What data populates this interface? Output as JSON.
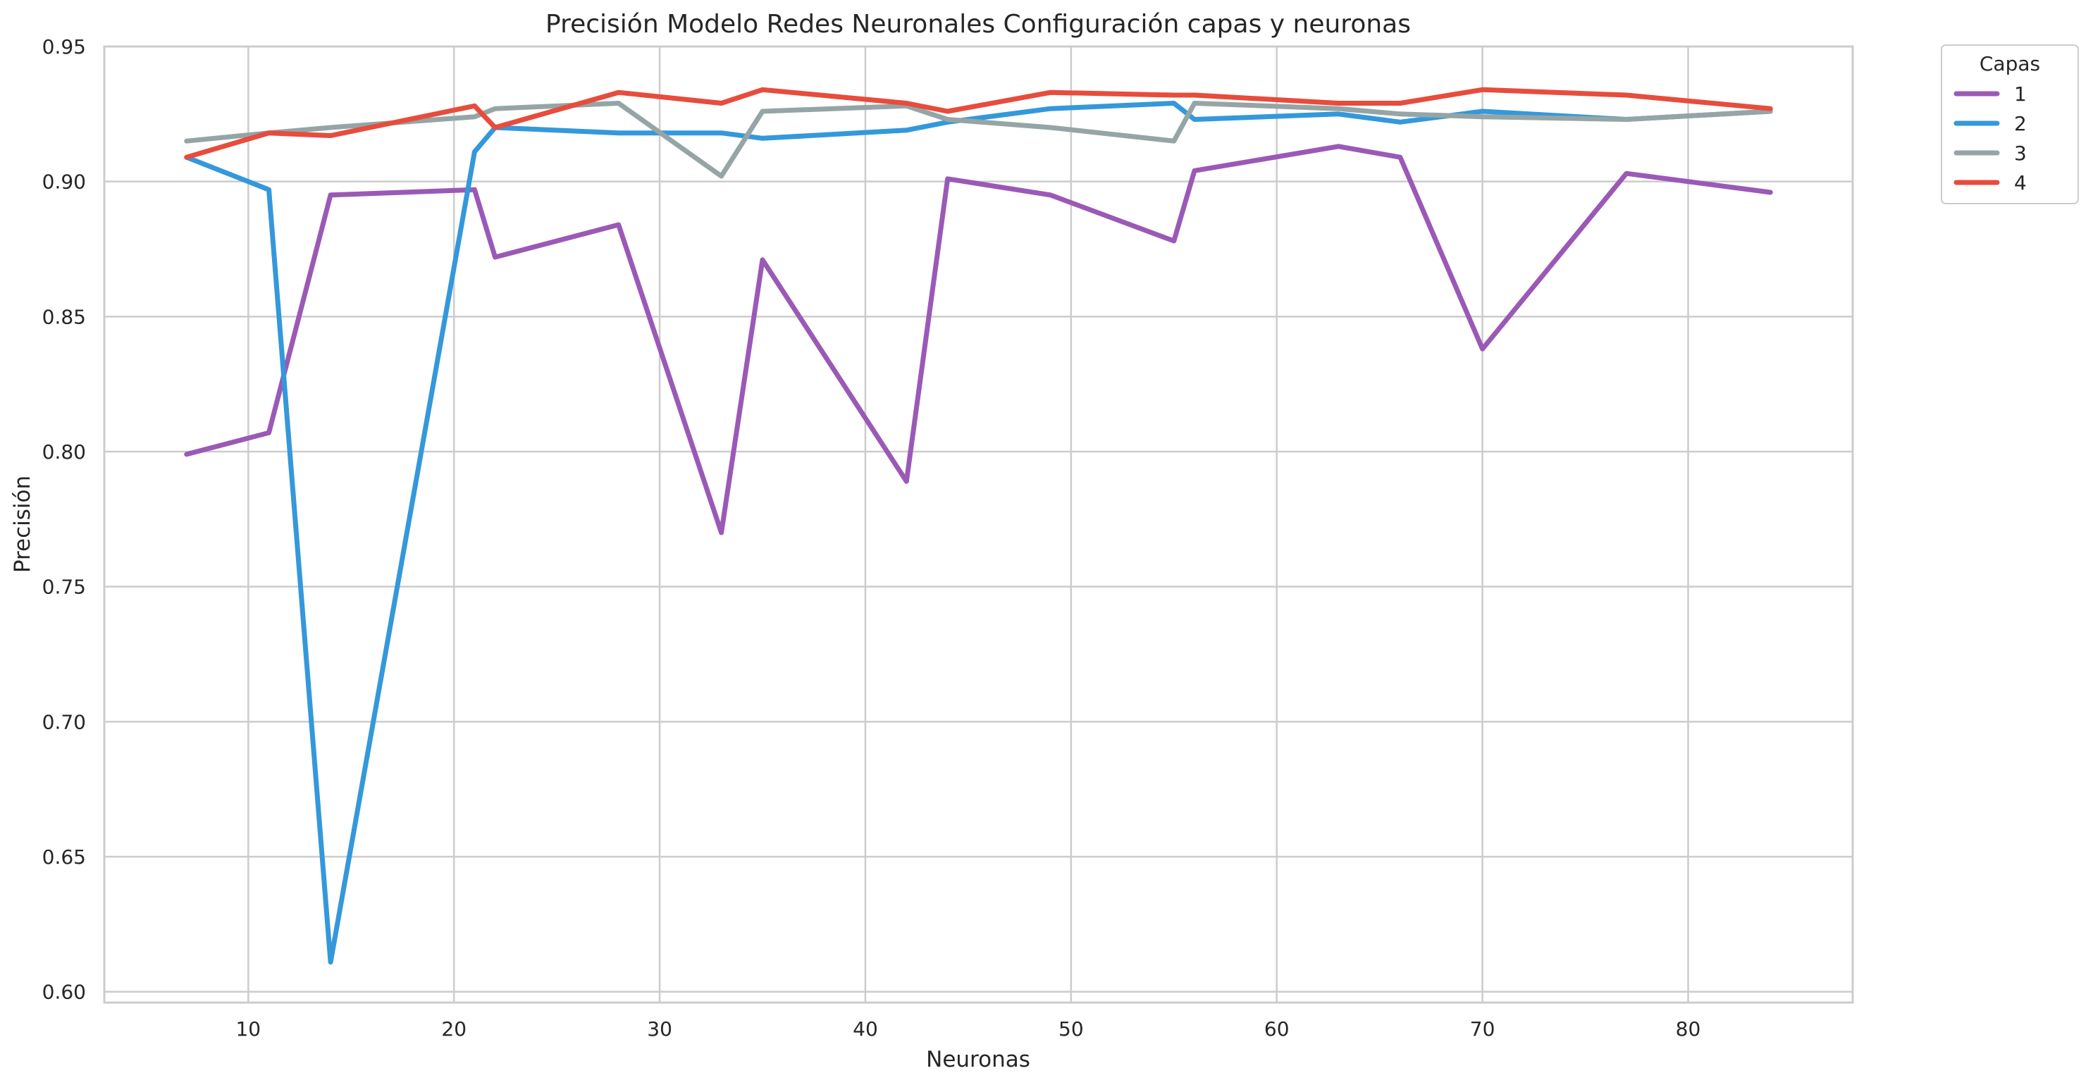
{
  "chart_data": {
    "type": "line",
    "title": "Precisión Modelo Redes Neuronales Configuración capas y neuronas",
    "xlabel": "Neuronas",
    "ylabel": "Precisión",
    "xlim": [
      3,
      88
    ],
    "ylim": [
      0.596,
      0.95
    ],
    "xticks": [
      10,
      20,
      30,
      40,
      50,
      60,
      70,
      80
    ],
    "yticks": [
      0.6,
      0.65,
      0.7,
      0.75,
      0.8,
      0.85,
      0.9,
      0.95
    ],
    "ytick_labels": [
      "0.60",
      "0.65",
      "0.70",
      "0.75",
      "0.80",
      "0.85",
      "0.90",
      "0.95"
    ],
    "grid": true,
    "legend": {
      "title": "Capas",
      "placement": "outside-top-right"
    },
    "series": [
      {
        "name": "1",
        "color": "#9b59b6",
        "x": [
          7,
          11,
          14,
          21,
          22,
          28,
          33,
          35,
          42,
          44,
          49,
          55,
          56,
          63,
          66,
          70,
          77,
          84
        ],
        "y": [
          0.799,
          0.807,
          0.895,
          0.897,
          0.872,
          0.884,
          0.77,
          0.871,
          0.789,
          0.901,
          0.895,
          0.878,
          0.904,
          0.913,
          0.909,
          0.838,
          0.903,
          0.896
        ]
      },
      {
        "name": "2",
        "color": "#3498db",
        "x": [
          7,
          11,
          14,
          21,
          22,
          28,
          33,
          35,
          42,
          44,
          49,
          55,
          56,
          63,
          66,
          70,
          77,
          84
        ],
        "y": [
          0.909,
          0.897,
          0.611,
          0.911,
          0.92,
          0.918,
          0.918,
          0.916,
          0.919,
          0.922,
          0.927,
          0.929,
          0.923,
          0.925,
          0.922,
          0.926,
          0.923,
          0.926
        ]
      },
      {
        "name": "3",
        "color": "#95a5a6",
        "x": [
          7,
          11,
          14,
          21,
          22,
          28,
          33,
          35,
          42,
          44,
          49,
          55,
          56,
          63,
          66,
          70,
          77,
          84
        ],
        "y": [
          0.915,
          0.918,
          0.92,
          0.924,
          0.927,
          0.929,
          0.902,
          0.926,
          0.928,
          0.923,
          0.92,
          0.915,
          0.929,
          0.927,
          0.925,
          0.924,
          0.923,
          0.926
        ]
      },
      {
        "name": "4",
        "color": "#e74c3c",
        "x": [
          7,
          11,
          14,
          21,
          22,
          28,
          33,
          35,
          42,
          44,
          49,
          55,
          56,
          63,
          66,
          70,
          77,
          84
        ],
        "y": [
          0.909,
          0.918,
          0.917,
          0.928,
          0.92,
          0.933,
          0.929,
          0.934,
          0.929,
          0.926,
          0.933,
          0.932,
          0.932,
          0.929,
          0.929,
          0.934,
          0.932,
          0.927
        ]
      }
    ]
  }
}
